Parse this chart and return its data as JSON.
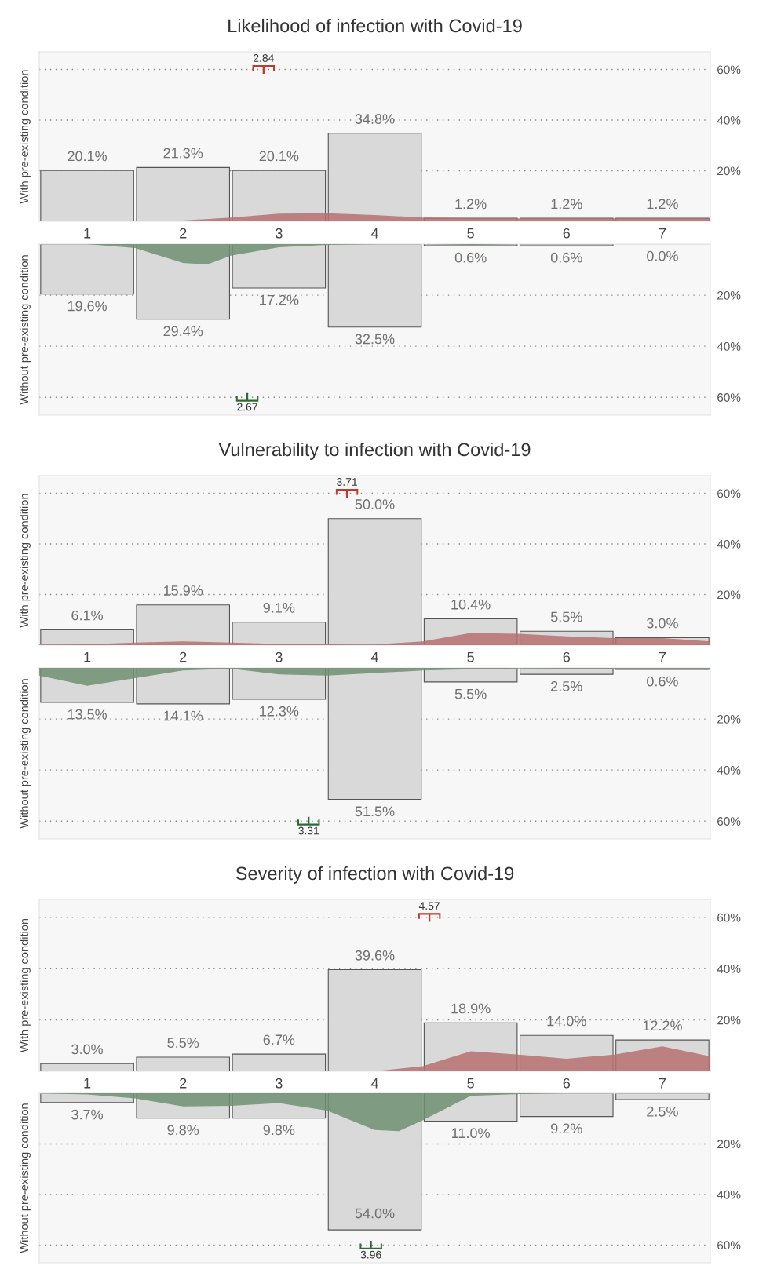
{
  "chart_data": [
    {
      "type": "bar",
      "title": "Likelihood of infection with Covid-19",
      "ylabel": "With pre-existing condition",
      "x": [
        1,
        2,
        3,
        4,
        5,
        6,
        7
      ],
      "xlim": [
        0.5,
        7.5
      ],
      "xticks": [
        1,
        2,
        3,
        4,
        5,
        6,
        7
      ],
      "ylim": [
        0,
        67
      ],
      "yticks": [
        {
          "value": 20,
          "label": "20%"
        },
        {
          "value": 40,
          "label": "40%"
        },
        {
          "value": 60,
          "label": "60%"
        }
      ],
      "grid": "y",
      "series": [
        {
          "type": "bar",
          "color": "#d9d9d9",
          "values": [
            20.1,
            21.3,
            20.1,
            34.8,
            1.2,
            1.2,
            1.2
          ],
          "value_labels": [
            "20.1%",
            "21.3%",
            "20.1%",
            "34.8%",
            "1.2%",
            "1.2%",
            "1.2%"
          ]
        },
        {
          "type": "area",
          "color": "#b5706e",
          "x": [
            0.5,
            1,
            1.5,
            2,
            2.5,
            3,
            3.5,
            4,
            4.5,
            5,
            5.5,
            6,
            6.5,
            7,
            7.5
          ],
          "values": [
            0.3,
            0.3,
            0.3,
            0.3,
            1.5,
            3.0,
            3.2,
            2.5,
            1.5,
            1.2,
            1.2,
            1.2,
            1.2,
            1.2,
            1.2
          ]
        },
        {
          "type": "scatter",
          "color": "#c0392b",
          "x": [
            2.84
          ],
          "values": [
            60
          ]
        }
      ],
      "annotations": [
        {
          "text": "2.84",
          "x": 2.84,
          "y": 60
        }
      ]
    },
    {
      "type": "bar",
      "ylabel": "Without pre-existing condition",
      "x": [
        1,
        2,
        3,
        4,
        5,
        6,
        7
      ],
      "xlim": [
        0.5,
        7.5
      ],
      "ylim": [
        67,
        0
      ],
      "yticks": [
        {
          "value": 20,
          "label": "20%"
        },
        {
          "value": 40,
          "label": "40%"
        },
        {
          "value": 60,
          "label": "60%"
        }
      ],
      "grid": "y",
      "tick_labels": "y",
      "series": [
        {
          "type": "bar",
          "color": "#d9d9d9",
          "values": [
            19.6,
            29.4,
            17.2,
            32.5,
            0.6,
            0.6,
            0.0
          ],
          "value_labels": [
            "19.6%",
            "29.4%",
            "17.2%",
            "32.5%",
            "0.6%",
            "0.6%",
            "0.0%"
          ]
        },
        {
          "type": "area",
          "color": "#6f8f72",
          "x": [
            0.5,
            1,
            1.5,
            2,
            2.25,
            2.5,
            3,
            3.5,
            4,
            4.5,
            5,
            5.5,
            6,
            6.5,
            7,
            7.5
          ],
          "values": [
            0,
            0,
            1.5,
            7.4,
            8,
            4.5,
            1.2,
            0.3,
            0,
            0,
            0.3,
            0,
            0,
            0,
            0,
            0
          ]
        },
        {
          "type": "scatter",
          "color": "#2e6b34",
          "x": [
            2.67
          ],
          "values": [
            60
          ]
        }
      ],
      "annotations": [
        {
          "text": "2.67",
          "x": 2.67,
          "y": 60
        }
      ]
    },
    {
      "type": "bar",
      "title": "Vulnerability to infection with Covid-19",
      "ylabel": "With pre-existing condition",
      "x": [
        1,
        2,
        3,
        4,
        5,
        6,
        7
      ],
      "xlim": [
        0.5,
        7.5
      ],
      "xticks": [
        1,
        2,
        3,
        4,
        5,
        6,
        7
      ],
      "ylim": [
        0,
        67
      ],
      "yticks": [
        {
          "value": 20,
          "label": "20%"
        },
        {
          "value": 40,
          "label": "40%"
        },
        {
          "value": 60,
          "label": "60%"
        }
      ],
      "grid": "y",
      "series": [
        {
          "type": "bar",
          "color": "#d9d9d9",
          "values": [
            6.1,
            15.9,
            9.1,
            50.0,
            10.4,
            5.5,
            3.0
          ],
          "value_labels": [
            "6.1%",
            "15.9%",
            "9.1%",
            "50.0%",
            "10.4%",
            "5.5%",
            "3.0%"
          ]
        },
        {
          "type": "area",
          "color": "#b5706e",
          "x": [
            0.5,
            1,
            1.5,
            2,
            2.5,
            3,
            3.5,
            4,
            4.5,
            5,
            5.5,
            6,
            6.5,
            7,
            7.5
          ],
          "values": [
            0.2,
            0.3,
            1.0,
            1.5,
            1.0,
            0.5,
            0.3,
            0.2,
            1.5,
            4.8,
            4.5,
            3.5,
            2.8,
            2.8,
            1.5
          ]
        },
        {
          "type": "scatter",
          "color": "#c0392b",
          "x": [
            3.71
          ],
          "values": [
            60
          ]
        }
      ],
      "annotations": [
        {
          "text": "3.71",
          "x": 3.71,
          "y": 60
        }
      ]
    },
    {
      "type": "bar",
      "ylabel": "Without pre-existing condition",
      "x": [
        1,
        2,
        3,
        4,
        5,
        6,
        7
      ],
      "xlim": [
        0.5,
        7.5
      ],
      "ylim": [
        67,
        0
      ],
      "yticks": [
        {
          "value": 20,
          "label": "20%"
        },
        {
          "value": 40,
          "label": "40%"
        },
        {
          "value": 60,
          "label": "60%"
        }
      ],
      "grid": "y",
      "tick_labels": "y",
      "series": [
        {
          "type": "bar",
          "color": "#d9d9d9",
          "values": [
            13.5,
            14.1,
            12.3,
            51.5,
            5.5,
            2.5,
            0.6
          ],
          "value_labels": [
            "13.5%",
            "14.1%",
            "12.3%",
            "51.5%",
            "5.5%",
            "2.5%",
            "0.6%"
          ]
        },
        {
          "type": "area",
          "color": "#6f8f72",
          "x": [
            0.5,
            1,
            1.5,
            2,
            2.5,
            3,
            3.5,
            4,
            4.5,
            5,
            5.5,
            6,
            6.5,
            7,
            7.5
          ],
          "values": [
            3,
            7,
            4,
            1,
            0.3,
            2.5,
            3,
            2,
            1,
            0.5,
            0.2,
            0.3,
            0.5,
            0.5,
            0.5
          ]
        },
        {
          "type": "scatter",
          "color": "#2e6b34",
          "x": [
            3.31
          ],
          "values": [
            60
          ]
        }
      ],
      "annotations": [
        {
          "text": "3.31",
          "x": 3.31,
          "y": 60
        }
      ]
    },
    {
      "type": "bar",
      "title": "Severity of infection with Covid-19",
      "ylabel": "With pre-existing condition",
      "x": [
        1,
        2,
        3,
        4,
        5,
        6,
        7
      ],
      "xlim": [
        0.5,
        7.5
      ],
      "xticks": [
        1,
        2,
        3,
        4,
        5,
        6,
        7
      ],
      "ylim": [
        0,
        67
      ],
      "yticks": [
        {
          "value": 20,
          "label": "20%"
        },
        {
          "value": 40,
          "label": "40%"
        },
        {
          "value": 60,
          "label": "60%"
        }
      ],
      "grid": "y",
      "series": [
        {
          "type": "bar",
          "color": "#d9d9d9",
          "values": [
            3.0,
            5.5,
            6.7,
            39.6,
            18.9,
            14.0,
            12.2
          ],
          "value_labels": [
            "3.0%",
            "5.5%",
            "6.7%",
            "39.6%",
            "18.9%",
            "14.0%",
            "12.2%"
          ]
        },
        {
          "type": "area",
          "color": "#b5706e",
          "x": [
            0.5,
            1,
            1.5,
            2,
            2.5,
            3,
            3.5,
            4,
            4.5,
            5,
            5.5,
            6,
            6.5,
            7,
            7.5
          ],
          "values": [
            0.3,
            0.3,
            0.3,
            0.3,
            0.3,
            0.3,
            0.2,
            0,
            2,
            7.8,
            6.5,
            4.9,
            6.5,
            9.7,
            5.8
          ]
        },
        {
          "type": "scatter",
          "color": "#c0392b",
          "x": [
            4.57
          ],
          "values": [
            60
          ]
        }
      ],
      "annotations": [
        {
          "text": "4.57",
          "x": 4.57,
          "y": 60
        }
      ]
    },
    {
      "type": "bar",
      "ylabel": "Without pre-existing condition",
      "x": [
        1,
        2,
        3,
        4,
        5,
        6,
        7
      ],
      "xlim": [
        0.5,
        7.5
      ],
      "ylim": [
        67,
        0
      ],
      "yticks": [
        {
          "value": 20,
          "label": "20%"
        },
        {
          "value": 40,
          "label": "40%"
        },
        {
          "value": 60,
          "label": "60%"
        }
      ],
      "grid": "y",
      "tick_labels": "y",
      "series": [
        {
          "type": "bar",
          "color": "#d9d9d9",
          "values": [
            3.7,
            9.8,
            9.8,
            54.0,
            11.0,
            9.2,
            2.5
          ],
          "value_labels": [
            "3.7%",
            "9.8%",
            "9.8%",
            "54.0%",
            "11.0%",
            "9.2%",
            "2.5%"
          ]
        },
        {
          "type": "area",
          "color": "#6f8f72",
          "x": [
            0.5,
            1,
            1.5,
            2,
            2.5,
            3,
            3.5,
            4,
            4.25,
            4.5,
            5,
            5.5,
            6,
            6.5,
            7,
            7.5
          ],
          "values": [
            0,
            0.5,
            2,
            5.2,
            5,
            3.9,
            6.8,
            14.5,
            15,
            10.7,
            1,
            0.3,
            0,
            0,
            0,
            0
          ]
        },
        {
          "type": "scatter",
          "color": "#2e6b34",
          "x": [
            3.96
          ],
          "values": [
            60
          ]
        }
      ],
      "annotations": [
        {
          "text": "3.96",
          "x": 3.96,
          "y": 60
        }
      ]
    }
  ]
}
